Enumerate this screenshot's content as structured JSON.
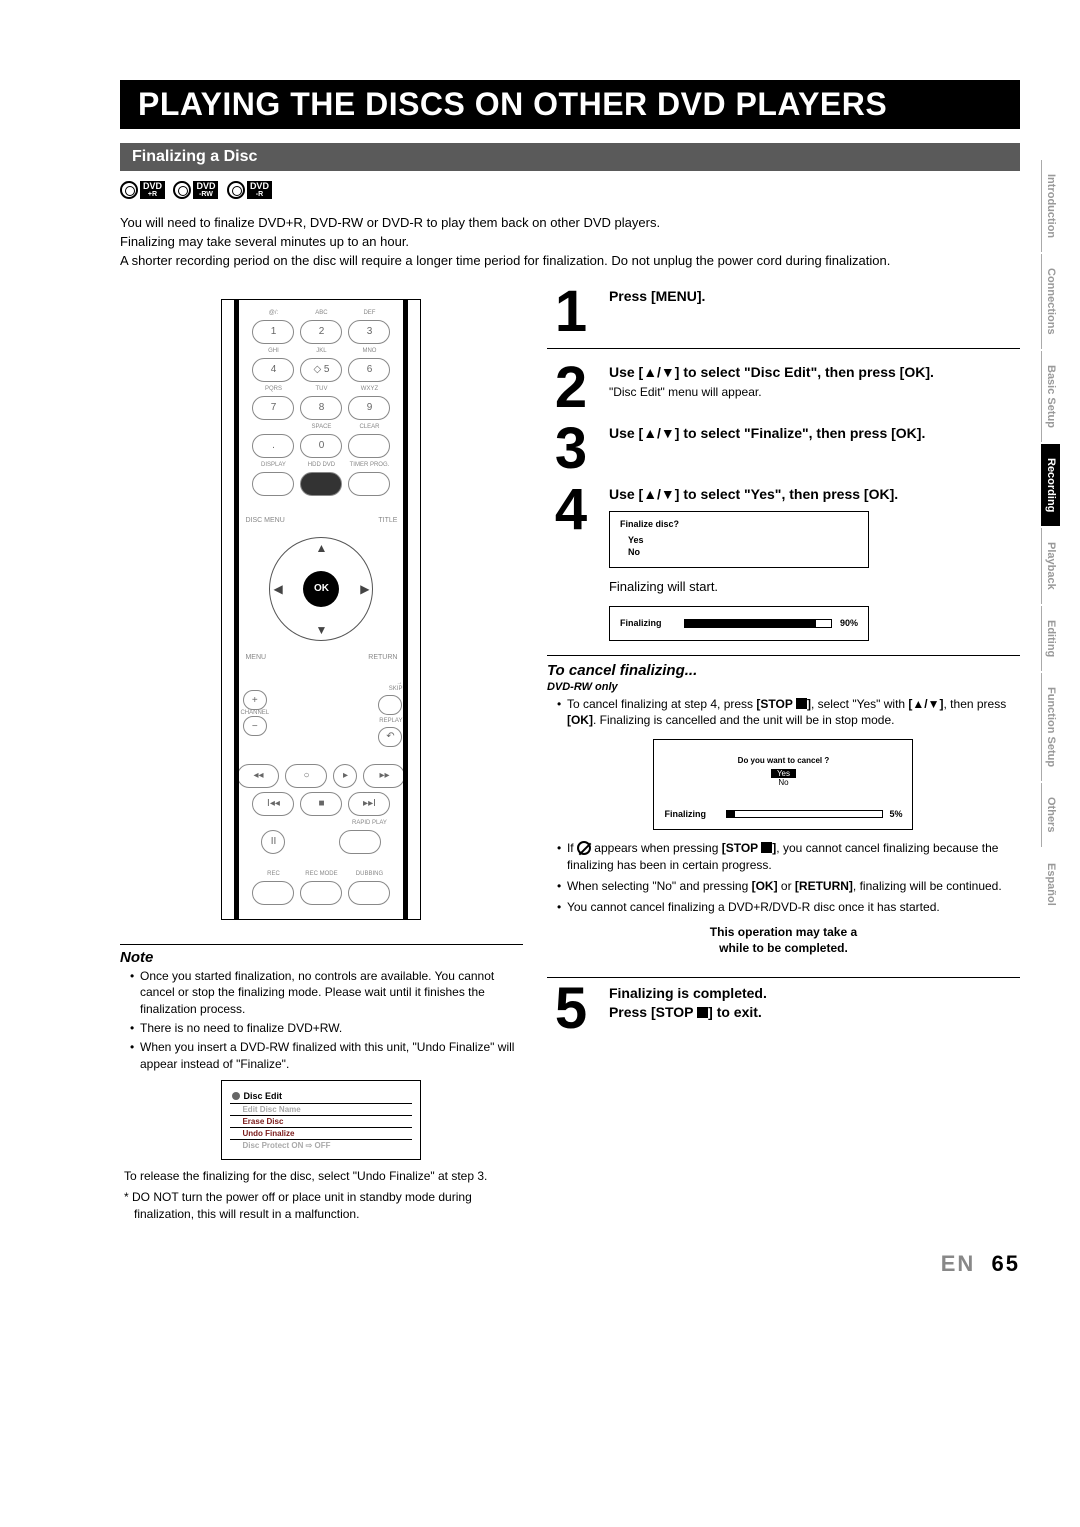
{
  "title": "PLAYING THE DISCS ON OTHER DVD PLAYERS",
  "section": "Finalizing a Disc",
  "disc_badges": [
    {
      "top": "DVD",
      "sub": "+R"
    },
    {
      "top": "DVD",
      "sub": "-RW"
    },
    {
      "top": "DVD",
      "sub": "-R"
    }
  ],
  "intro": [
    "You will need to finalize DVD+R, DVD-RW or DVD-R to play them back on other DVD players.",
    "Finalizing may take several minutes up to an hour.",
    "A shorter recording period on the disc will require a longer time period for finalization. Do not unplug the power cord during finalization."
  ],
  "remote": {
    "labels_r1": [
      "@/:",
      "ABC",
      "DEF"
    ],
    "keys_r1": [
      "1",
      "2",
      "3"
    ],
    "labels_r2": [
      "GHI",
      "JKL",
      "MNO"
    ],
    "keys_r2": [
      "4",
      "5",
      "6"
    ],
    "labels_r3": [
      "PQRS",
      "TUV",
      "WXYZ"
    ],
    "keys_r3": [
      "7",
      "8",
      "9"
    ],
    "labels_r4": [
      "",
      "SPACE",
      "CLEAR"
    ],
    "keys_r4": [
      ".",
      "0",
      ""
    ],
    "labels_r5": [
      "DISPLAY",
      "HDD  DVD",
      "TIMER PROG."
    ],
    "dpad_top": "DISC MENU",
    "dpad_tr": "TITLE",
    "dpad_bl": "MENU",
    "dpad_br": "RETURN",
    "ok": "OK",
    "ch_l": "CHANNEL",
    "skip": "SKIP",
    "replay": "REPLAY",
    "bottom1": [
      "◂◂",
      "○",
      "▸",
      "▸▸"
    ],
    "bottom2": [
      "I◂◂",
      "■",
      "▸▸I"
    ],
    "rapid": "RAPID PLAY",
    "bottom3_labels": [
      "REC",
      "REC MODE",
      "DUBBING"
    ]
  },
  "note": {
    "title": "Note",
    "items": [
      "Once you started finalization, no controls are available. You cannot cancel or stop the finalizing mode. Please wait until it finishes the finalization process.",
      "There is no need to finalize DVD+RW.",
      "When you insert a DVD-RW finalized with this unit, \"Undo Finalize\" will appear instead of \"Finalize\"."
    ]
  },
  "disc_edit": {
    "title": "Disc Edit",
    "rows": [
      "Edit Disc Name",
      "Erase Disc",
      "Undo Finalize",
      "Disc Protect ON ⇨ OFF"
    ]
  },
  "afternote": "To release the finalizing for the disc, select \"Undo Finalize\" at step 3.",
  "warn": "* DO NOT turn the power off or place unit in standby mode during finalization, this will result in a malfunction.",
  "steps": {
    "s1": "Press [MENU].",
    "s2": "Use [▲/▼] to select \"Disc Edit\", then press [OK].",
    "s2sub": "\"Disc Edit\" menu will appear.",
    "s3": "Use [▲/▼] to select \"Finalize\", then press [OK].",
    "s4": "Use [▲/▼] to select \"Yes\", then press [OK].",
    "s4box_q": "Finalize disc?",
    "s4box_yes": "Yes",
    "s4box_no": "No",
    "s4note": "Finalizing will start.",
    "s4prog_label": "Finalizing",
    "s4prog_pct": "90%",
    "s4prog_fill": 90,
    "cancel_title": "To cancel finalizing...",
    "dvdrw": "DVD-RW only",
    "cancel_items": [
      "To cancel finalizing at step 4, press [STOP ■], select \"Yes\" with [▲/▼], then press [OK]. Finalizing is cancelled and the unit will be in stop mode."
    ],
    "cancel_box_q": "Do you want to cancel ?",
    "cancel_box_yes": "Yes",
    "cancel_box_no": "No",
    "cancel_prog_label": "Finalizing",
    "cancel_prog_pct": "5%",
    "cancel_prog_fill": 5,
    "cancel_items2": [
      "If ⊘ appears when pressing [STOP ■], you cannot cancel finalizing because the finalizing has been in certain progress.",
      "When selecting \"No\" and pressing [OK] or [RETURN], finalizing will be continued.",
      "You cannot cancel finalizing a DVD+R/DVD-R disc once it has started."
    ],
    "opnote1": "This operation may take a",
    "opnote2": "while to be completed.",
    "s5a": "Finalizing is completed.",
    "s5b": "Press [STOP ■] to exit."
  },
  "tabs": [
    "Introduction",
    "Connections",
    "Basic Setup",
    "Recording",
    "Playback",
    "Editing",
    "Function Setup",
    "Others",
    "Español"
  ],
  "active_tab": "Recording",
  "footer_en": "EN",
  "footer_pg": "65"
}
